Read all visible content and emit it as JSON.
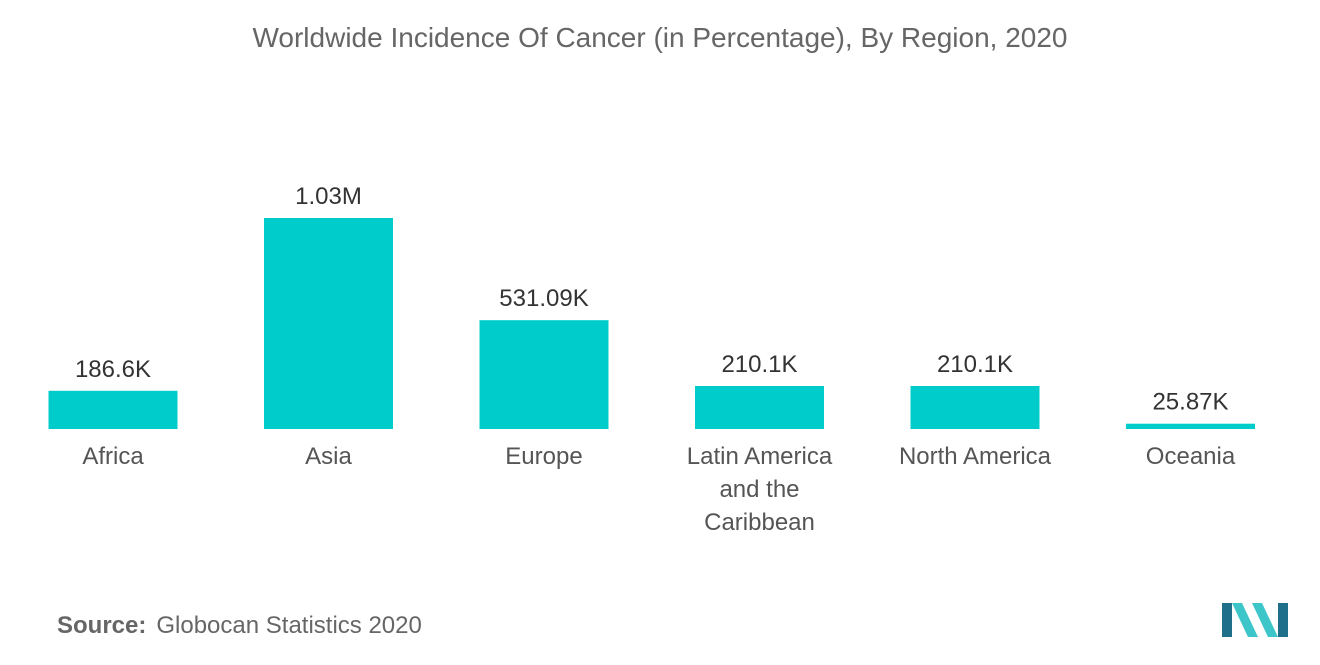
{
  "title": "Worldwide Incidence Of Cancer (in Percentage), By Region, 2020",
  "source_label": "Source:",
  "source_text": "Globocan Statistics 2020",
  "colors": {
    "bar": "#00CCCC",
    "logo_dark": "#1f6f8b",
    "logo_light": "#3cc6c9"
  },
  "chart_data": {
    "type": "bar",
    "title": "Worldwide Incidence Of Cancer (in Percentage), By Region, 2020",
    "categories": [
      [
        "Africa"
      ],
      [
        "Asia"
      ],
      [
        "Europe"
      ],
      [
        "Latin America",
        "and the",
        "Caribbean"
      ],
      [
        "North America"
      ],
      [
        "Oceania"
      ]
    ],
    "values": [
      186.6,
      1030,
      531.09,
      210.1,
      210.1,
      25.87
    ],
    "value_labels": [
      "186.6K",
      "1.03M",
      "531.09K",
      "210.1K",
      "210.1K",
      "25.87K"
    ],
    "value_unit": "K",
    "grid": false,
    "legend": "none"
  }
}
